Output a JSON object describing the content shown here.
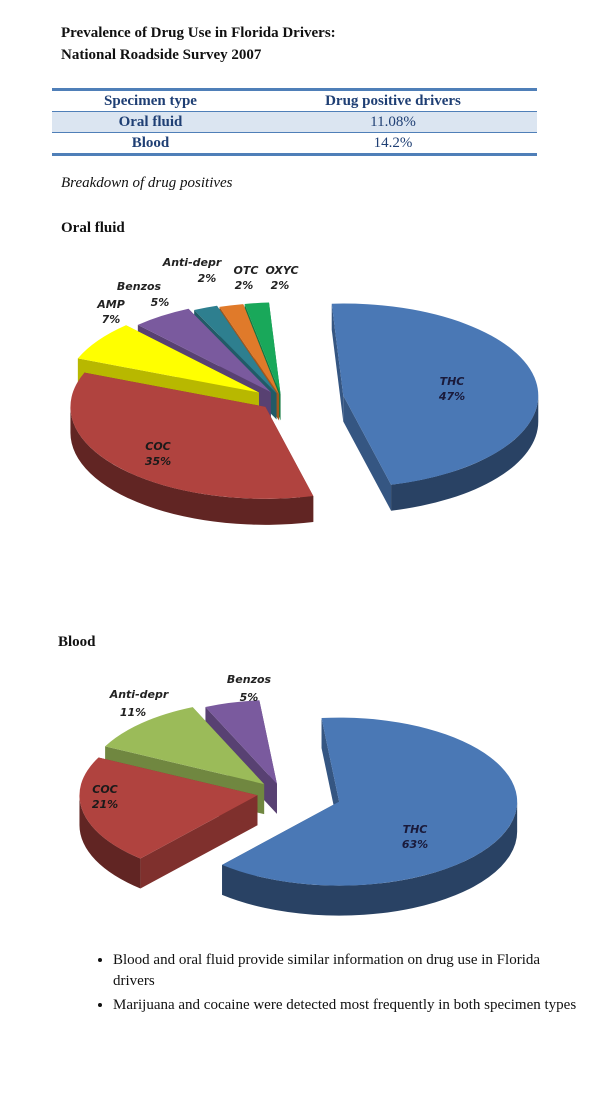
{
  "header": {
    "title_line1": "Prevalence of Drug Use in Florida Drivers:",
    "title_line2": "National Roadside Survey 2007"
  },
  "table": {
    "headers": [
      "Specimen type",
      "Drug positive drivers"
    ],
    "rows": [
      {
        "type": "Oral fluid",
        "value": "11.08%"
      },
      {
        "type": "Blood",
        "value": "14.2%"
      }
    ],
    "accent_color": "#4f7fb8",
    "shade_color": "#dbe5f1"
  },
  "breakdown_label": "Breakdown of drug positives",
  "sections": {
    "oral": "Oral fluid",
    "blood": "Blood"
  },
  "chart_data": [
    {
      "type": "pie",
      "title": "Oral fluid",
      "exploded": true,
      "style": "3d",
      "slices": [
        {
          "label": "THC",
          "value": 47,
          "pct": "47%",
          "color": "#4a78b5"
        },
        {
          "label": "COC",
          "value": 35,
          "pct": "35%",
          "color": "#b0433f"
        },
        {
          "label": "AMP",
          "value": 7,
          "pct": "7%",
          "color": "#ffff00"
        },
        {
          "label": "Benzos",
          "value": 5,
          "pct": "5%",
          "color": "#7a5a9e"
        },
        {
          "label": "Anti-depr",
          "value": 2,
          "pct": "2%",
          "color": "#2e7f8f"
        },
        {
          "label": "OTC",
          "value": 2,
          "pct": "2%",
          "color": "#e07a2a"
        },
        {
          "label": "OXYC",
          "value": 2,
          "pct": "2%",
          "color": "#19a85a"
        }
      ]
    },
    {
      "type": "pie",
      "title": "Blood",
      "exploded": true,
      "style": "3d",
      "slices": [
        {
          "label": "THC",
          "value": 63,
          "pct": "63%",
          "color": "#4a78b5"
        },
        {
          "label": "COC",
          "value": 21,
          "pct": "21%",
          "color": "#b0433f"
        },
        {
          "label": "Anti-depr",
          "value": 11,
          "pct": "11%",
          "color": "#9bbb59"
        },
        {
          "label": "Benzos",
          "value": 5,
          "pct": "5%",
          "color": "#7a5a9e"
        }
      ]
    }
  ],
  "notes": [
    "Blood and oral fluid provide similar information on drug use in Florida drivers",
    "Marijuana and cocaine were detected most frequently in both specimen types"
  ]
}
